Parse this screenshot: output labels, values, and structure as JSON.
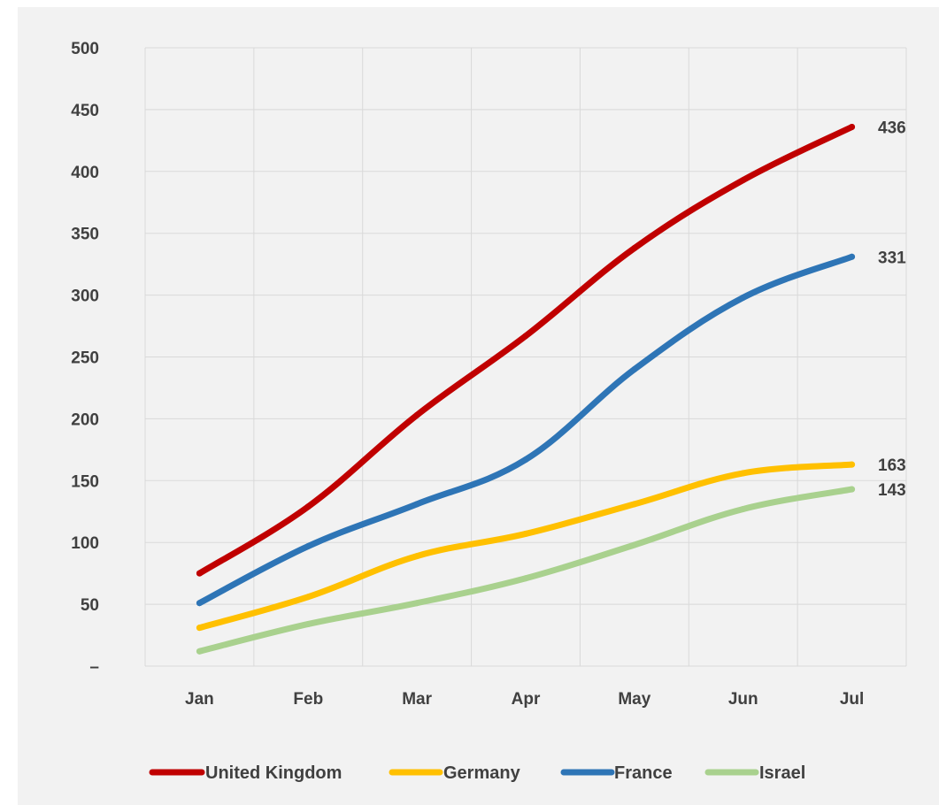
{
  "chart_data": {
    "type": "line",
    "categories": [
      "Jan",
      "Feb",
      "Mar",
      "Apr",
      "May",
      "Jun",
      "Jul"
    ],
    "y_ticks": [
      {
        "value": 0,
        "label": "–"
      },
      {
        "value": 50,
        "label": "50"
      },
      {
        "value": 100,
        "label": "100"
      },
      {
        "value": 150,
        "label": "150"
      },
      {
        "value": 200,
        "label": "200"
      },
      {
        "value": 250,
        "label": "250"
      },
      {
        "value": 300,
        "label": "300"
      },
      {
        "value": 350,
        "label": "350"
      },
      {
        "value": 400,
        "label": "400"
      },
      {
        "value": 450,
        "label": "450"
      },
      {
        "value": 500,
        "label": "500"
      }
    ],
    "ylim": [
      0,
      500
    ],
    "grid": true,
    "legend_position": "bottom",
    "series": [
      {
        "name": "United Kingdom",
        "color": "#c00000",
        "values": [
          75,
          129,
          203,
          267,
          338,
          393,
          436
        ],
        "end_label": "436"
      },
      {
        "name": "Germany",
        "color": "#ffc000",
        "values": [
          31,
          56,
          89,
          107,
          131,
          156,
          163
        ],
        "end_label": "163"
      },
      {
        "name": "France",
        "color": "#2e75b6",
        "values": [
          51,
          97,
          131,
          167,
          240,
          298,
          331
        ],
        "end_label": "331"
      },
      {
        "name": "Israel",
        "color": "#a9d18e",
        "values": [
          12,
          34,
          51,
          71,
          98,
          127,
          143
        ],
        "end_label": "143"
      }
    ]
  }
}
